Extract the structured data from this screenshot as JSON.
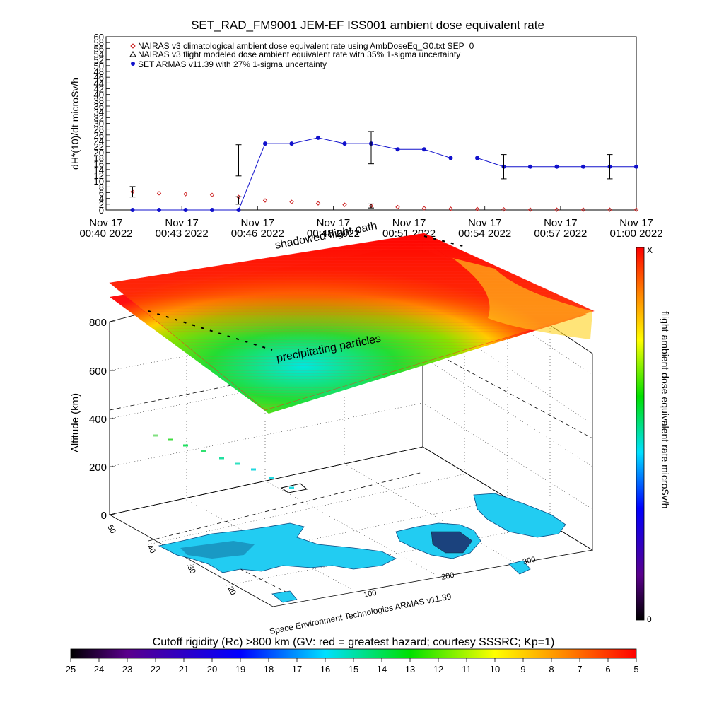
{
  "chart_data": [
    {
      "type": "line",
      "title": "SET_RAD_FM9001  JEM-EF ISS001 ambient dose equivalent rate",
      "ylabel": "dH*(10)/dt microSv/h",
      "ylim": [
        0,
        60
      ],
      "yticks": [
        "0",
        "2",
        "4",
        "6",
        "8",
        "10",
        "12",
        "14",
        "16",
        "18",
        "20",
        "22",
        "24",
        "26",
        "28",
        "30",
        "32",
        "34",
        "36",
        "38",
        "40",
        "42",
        "44",
        "46",
        "48",
        "50",
        "52",
        "54",
        "56",
        "58",
        "60"
      ],
      "xticks": [
        {
          "l1": "Nov 17",
          "l2": "00:40 2022"
        },
        {
          "l1": "Nov 17",
          "l2": "00:43 2022"
        },
        {
          "l1": "Nov 17",
          "l2": "00:46 2022"
        },
        {
          "l1": "Nov 17",
          "l2": "00:48 2022"
        },
        {
          "l1": "Nov 17",
          "l2": "00:51 2022"
        },
        {
          "l1": "Nov 17",
          "l2": "00:54 2022"
        },
        {
          "l1": "Nov 17",
          "l2": "00:57 2022"
        },
        {
          "l1": "Nov 17",
          "l2": "01:00 2022"
        }
      ],
      "xlim_min": [
        0,
        20
      ],
      "legend_position": "top-left",
      "series": [
        {
          "name": "NAIRAS v3 climatological ambient dose equivalent rate using AmbDoseEq_G0.txt SEP=0",
          "marker": "diamond",
          "color": "#cc2222",
          "x": [
            1,
            2,
            3,
            4,
            5,
            6,
            7,
            8,
            9,
            10,
            11,
            12,
            13,
            14,
            15,
            16,
            17,
            18,
            19,
            20
          ],
          "y": [
            6.3,
            5.8,
            5.5,
            5.2,
            4.5,
            3.3,
            2.8,
            2.3,
            1.8,
            1.4,
            1.0,
            0.6,
            0.4,
            0.3,
            0.2,
            0.1,
            0.1,
            0.1,
            0.1,
            0.1
          ],
          "error_x": [
            1,
            5,
            10
          ],
          "error_y": [
            6.3,
            3.3,
            1.4
          ],
          "error_half": [
            1.8,
            1.3,
            0.7
          ]
        },
        {
          "name": "NAIRAS v3 flight modeled dose ambient equivalent rate with 35% 1-sigma uncertainty",
          "marker": "triangle",
          "color": "#000000",
          "x": [],
          "y": []
        },
        {
          "name": "SET ARMAS v11.39 with 27% 1-sigma uncertainty",
          "marker": "circle",
          "color": "#1111cc",
          "x": [
            1,
            2,
            3,
            4,
            5,
            6,
            7,
            8,
            9,
            10,
            11,
            12,
            13,
            14,
            15,
            16,
            17,
            18,
            19,
            20
          ],
          "y": [
            0,
            0,
            0,
            0,
            0,
            23,
            23,
            25,
            23,
            23,
            21,
            21,
            18,
            18,
            15,
            15,
            15,
            15,
            15,
            15
          ],
          "error_x": [
            5,
            10,
            15,
            19
          ],
          "error_y": [
            17.2,
            21.6,
            15.0,
            15.0
          ],
          "error_half": [
            5.4,
            5.6,
            4.2,
            4.2
          ]
        }
      ]
    },
    {
      "type": "scatter",
      "title": "",
      "zlabel": "Altitude (km)",
      "zticks": [
        "0",
        "200",
        "400",
        "600",
        "800"
      ],
      "lat_ticks": [
        "50",
        "40",
        "30",
        "20"
      ],
      "lon_ticks": [
        "100",
        "200",
        "300"
      ],
      "annotations": [
        "shadowed flight path",
        "precipitating particles"
      ],
      "colorbar": {
        "label": "flight ambient dose equivalent rate microSv/h",
        "top": "X",
        "bottom": "0"
      }
    },
    {
      "type": "heatmap",
      "title": "Cutoff rigidity (Rc) >800 km (GV: red = greatest hazard; courtesy SSSRC; Kp=1)",
      "ticks": [
        "25",
        "24",
        "23",
        "22",
        "21",
        "20",
        "19",
        "18",
        "17",
        "16",
        "15",
        "14",
        "13",
        "12",
        "11",
        "10",
        "9",
        "8",
        "7",
        "6",
        "5"
      ]
    }
  ],
  "credit": "Space Environment Technologies ARMAS v11.39"
}
